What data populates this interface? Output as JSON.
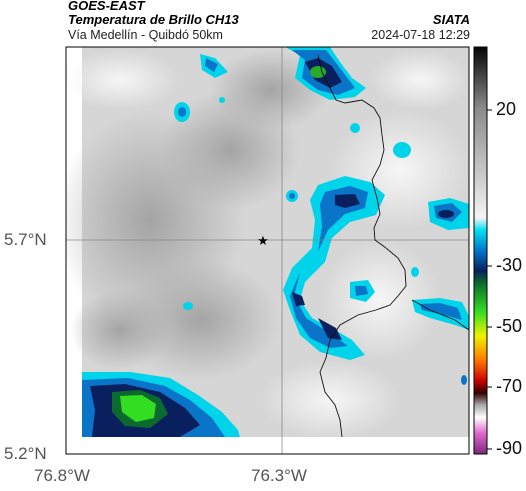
{
  "header": {
    "satellite": "GOES-EAST",
    "product": "Temperatura de Brillo CH13",
    "route": "Vía Medellín - Quibdó 50km",
    "source": "SIATA",
    "timestamp": "2024-07-18 12:29"
  },
  "axes": {
    "lat_labels": [
      "5.7°N",
      "5.2°N"
    ],
    "lon_labels": [
      "76.8°W",
      "76.3°W"
    ]
  },
  "colorbar": {
    "tick_labels": [
      "20",
      "-30",
      "-50",
      "-70",
      "-90"
    ],
    "stops": [
      {
        "value": 35,
        "color": "#050505"
      },
      {
        "value": 20,
        "color": "#8a8a8a"
      },
      {
        "value": 0,
        "color": "#f2f2f2"
      },
      {
        "value": -25,
        "color": "#00e0f0"
      },
      {
        "value": -30,
        "color": "#0077cc"
      },
      {
        "value": -35,
        "color": "#0a1f5e"
      },
      {
        "value": -38,
        "color": "#0b6b2e"
      },
      {
        "value": -45,
        "color": "#33dd22"
      },
      {
        "value": -50,
        "color": "#eef200"
      },
      {
        "value": -58,
        "color": "#ff7700"
      },
      {
        "value": -65,
        "color": "#cc0000"
      },
      {
        "value": -70,
        "color": "#330000"
      },
      {
        "value": -75,
        "color": "#aaaaaa"
      },
      {
        "value": -80,
        "color": "#ffffff"
      },
      {
        "value": -85,
        "color": "#dd66cc"
      },
      {
        "value": -92,
        "color": "#7a2a7a"
      }
    ]
  },
  "markers": {
    "location_icon": "star-icon"
  }
}
